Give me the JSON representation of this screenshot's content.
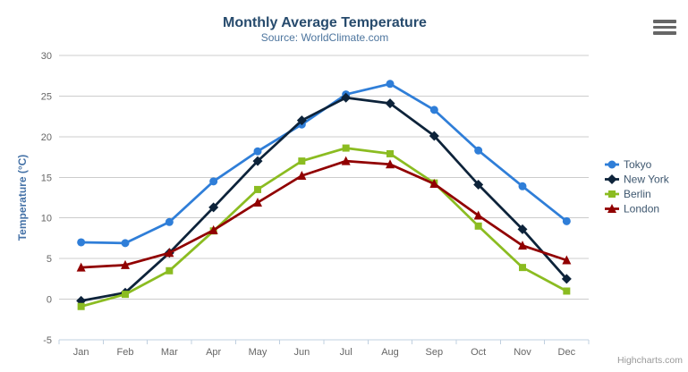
{
  "chart": {
    "title": "Monthly Average Temperature",
    "subtitle": "Source: WorldClimate.com",
    "y_axis_title": "Temperature (°C)",
    "credits": "Highcharts.com"
  },
  "export_menu": {
    "icon": "hamburger-icon"
  },
  "colors": {
    "background": "#ffffff",
    "title": "#274b6d",
    "subtitle": "#4d759e",
    "axis_label": "#666666",
    "y_axis_title": "#4572a7",
    "grid_line": "#cccccc",
    "axis_line": "#c0d0e0",
    "legend_text": "#3e576f",
    "credits": "#999999",
    "menu_icon": "#666666"
  },
  "chart_data": {
    "type": "line",
    "title": "Monthly Average Temperature",
    "subtitle": "Source: WorldClimate.com",
    "xlabel": "",
    "ylabel": "Temperature (°C)",
    "ylim": [
      -5,
      30
    ],
    "yticks": [
      -5,
      0,
      5,
      10,
      15,
      20,
      25,
      30
    ],
    "grid": true,
    "legend_position": "right",
    "categories": [
      "Jan",
      "Feb",
      "Mar",
      "Apr",
      "May",
      "Jun",
      "Jul",
      "Aug",
      "Sep",
      "Oct",
      "Nov",
      "Dec"
    ],
    "series": [
      {
        "name": "Tokyo",
        "color": "#2f7ed8",
        "marker": "circle",
        "values": [
          7.0,
          6.9,
          9.5,
          14.5,
          18.2,
          21.5,
          25.2,
          26.5,
          23.3,
          18.3,
          13.9,
          9.6
        ]
      },
      {
        "name": "New York",
        "color": "#0d233a",
        "marker": "diamond",
        "values": [
          -0.2,
          0.8,
          5.7,
          11.3,
          17.0,
          22.0,
          24.8,
          24.1,
          20.1,
          14.1,
          8.6,
          2.5
        ]
      },
      {
        "name": "Berlin",
        "color": "#8bbc21",
        "marker": "square",
        "values": [
          -0.9,
          0.6,
          3.5,
          8.4,
          13.5,
          17.0,
          18.6,
          17.9,
          14.3,
          9.0,
          3.9,
          1.0
        ]
      },
      {
        "name": "London",
        "color": "#910000",
        "marker": "triangle",
        "values": [
          3.9,
          4.2,
          5.7,
          8.5,
          11.9,
          15.2,
          17.0,
          16.6,
          14.2,
          10.3,
          6.6,
          4.8
        ]
      }
    ]
  }
}
